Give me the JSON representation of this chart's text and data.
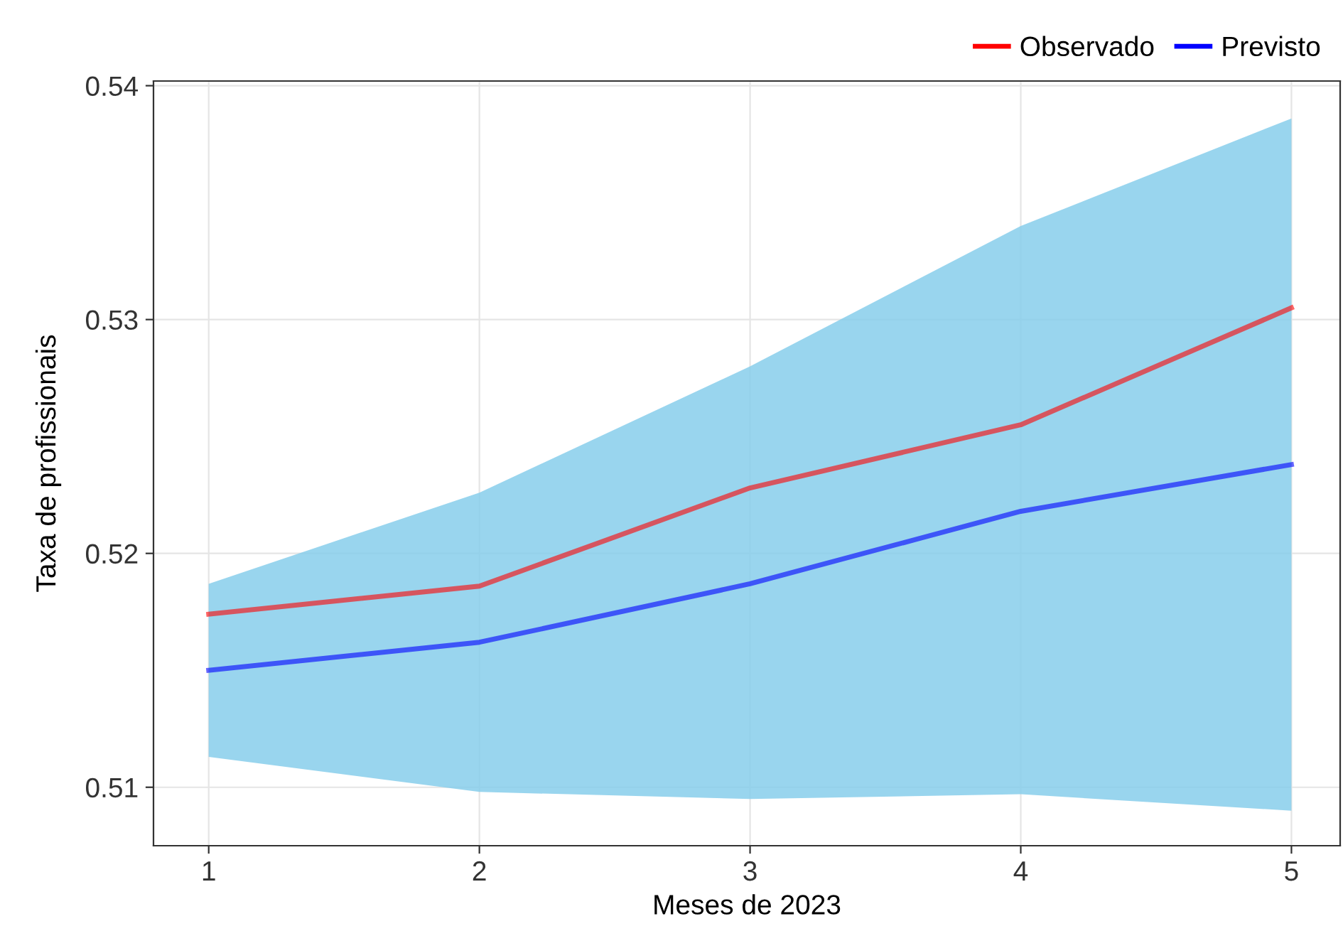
{
  "chart_data": {
    "type": "line",
    "xlabel": "Meses de 2023",
    "ylabel": "Taxa de profissionais",
    "x": [
      1,
      2,
      3,
      4,
      5
    ],
    "series": [
      {
        "name": "Observado",
        "color": "#ff0000",
        "values": [
          0.5174,
          0.5186,
          0.5228,
          0.5255,
          0.5305
        ]
      },
      {
        "name": "Previsto",
        "color": "#0000ff",
        "values": [
          0.515,
          0.5162,
          0.5187,
          0.5218,
          0.5238
        ],
        "lower": [
          0.5113,
          0.5098,
          0.5095,
          0.5097,
          0.509
        ],
        "upper": [
          0.5187,
          0.5226,
          0.528,
          0.534,
          0.5386
        ]
      }
    ],
    "xlim": [
      0.796,
      5.18
    ],
    "xticks": [
      1,
      2,
      3,
      4,
      5
    ],
    "ylim": [
      0.5075,
      0.5402
    ],
    "yticks": [
      0.51,
      0.52,
      0.53,
      0.54
    ],
    "grid": true,
    "legend": "top right",
    "marker": "none",
    "line_style": "solid"
  }
}
